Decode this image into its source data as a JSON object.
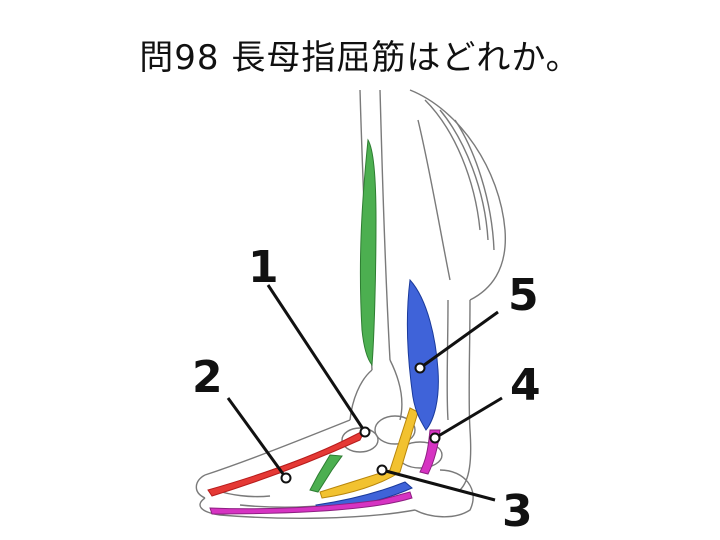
{
  "question": {
    "title": "問98 長母指屈筋はどれか。"
  },
  "labels": [
    {
      "id": "1",
      "text": "1"
    },
    {
      "id": "2",
      "text": "2"
    },
    {
      "id": "3",
      "text": "3"
    },
    {
      "id": "4",
      "text": "4"
    },
    {
      "id": "5",
      "text": "5"
    }
  ],
  "colors": {
    "green": "#4caf50",
    "red": "#e53935",
    "yellow": "#f2c230",
    "blue": "#3f63d9",
    "magenta": "#d633c2",
    "line": "#111111",
    "sketch": "#7a7a7a"
  }
}
